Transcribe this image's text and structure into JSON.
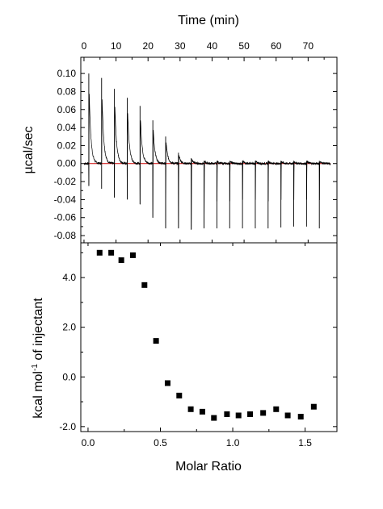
{
  "chart_data": [
    {
      "type": "line",
      "panel": "top",
      "x_axis_title": "Time (min)",
      "y_axis_title": "µcal/sec",
      "x_axis_position": "top",
      "xlim": [
        -1,
        79
      ],
      "ylim": [
        -0.088,
        0.118
      ],
      "x_ticks": [
        "0",
        "10",
        "20",
        "30",
        "40",
        "50",
        "60",
        "70"
      ],
      "x_tick_values": [
        0,
        10,
        20,
        30,
        40,
        50,
        60,
        70
      ],
      "y_ticks": [
        "0.10",
        "0.08",
        "0.06",
        "0.04",
        "0.02",
        "0.00",
        "-0.02",
        "-0.04",
        "-0.06",
        "-0.08"
      ],
      "y_tick_values": [
        0.1,
        0.08,
        0.06,
        0.04,
        0.02,
        0.0,
        -0.02,
        -0.04,
        -0.06,
        -0.08
      ],
      "injection_times": [
        1.5,
        5.5,
        9.5,
        13.5,
        17.5,
        21.5,
        25.5,
        29.5,
        33.5,
        37.5,
        41.5,
        45.5,
        49.5,
        53.5,
        57.5,
        61.5,
        65.5,
        69.5,
        73.5
      ],
      "peak_max": [
        0.1,
        0.095,
        0.083,
        0.073,
        0.064,
        0.048,
        0.03,
        0.012,
        0.006,
        0.003,
        0.003,
        0.003,
        0.003,
        0.003,
        0.003,
        0.003,
        0.003,
        0.003,
        0.003
      ],
      "peak_min": [
        -0.025,
        -0.028,
        -0.038,
        -0.04,
        -0.045,
        -0.06,
        -0.072,
        -0.072,
        -0.073,
        -0.072,
        -0.072,
        -0.072,
        -0.072,
        -0.072,
        -0.072,
        -0.071,
        -0.07,
        -0.07,
        -0.072
      ],
      "baseline": 0.0,
      "baseline_color": "#cc0000",
      "trace_color": "#000000"
    },
    {
      "type": "scatter",
      "panel": "bottom",
      "x_axis_title": "Molar Ratio",
      "y_axis_title": "kcal mol-1 of injectant",
      "xlim": [
        -0.05,
        1.72
      ],
      "ylim": [
        -2.2,
        5.4
      ],
      "x_ticks": [
        "0.0",
        "0.5",
        "1.0",
        "1.5"
      ],
      "x_tick_values": [
        0.0,
        0.5,
        1.0,
        1.5
      ],
      "y_ticks": [
        "4.0",
        "2.0",
        "0.0",
        "-2.0"
      ],
      "y_tick_values": [
        4.0,
        2.0,
        0.0,
        -2.0
      ],
      "marker": "square",
      "marker_color": "#000000",
      "points": [
        {
          "x": 0.08,
          "y": 5.0
        },
        {
          "x": 0.16,
          "y": 5.0
        },
        {
          "x": 0.23,
          "y": 4.7
        },
        {
          "x": 0.31,
          "y": 4.9
        },
        {
          "x": 0.39,
          "y": 3.7
        },
        {
          "x": 0.47,
          "y": 1.45
        },
        {
          "x": 0.55,
          "y": -0.25
        },
        {
          "x": 0.63,
          "y": -0.75
        },
        {
          "x": 0.71,
          "y": -1.3
        },
        {
          "x": 0.79,
          "y": -1.4
        },
        {
          "x": 0.87,
          "y": -1.65
        },
        {
          "x": 0.96,
          "y": -1.5
        },
        {
          "x": 1.04,
          "y": -1.55
        },
        {
          "x": 1.12,
          "y": -1.5
        },
        {
          "x": 1.21,
          "y": -1.45
        },
        {
          "x": 1.3,
          "y": -1.3
        },
        {
          "x": 1.38,
          "y": -1.55
        },
        {
          "x": 1.47,
          "y": -1.6
        },
        {
          "x": 1.56,
          "y": -1.2
        }
      ]
    }
  ],
  "labels": {
    "time_axis": "Time (min)",
    "power_axis": "µcal/sec",
    "ratio_axis": "Molar Ratio",
    "heat_axis_pre": "kcal mol",
    "heat_axis_sup": "-1",
    "heat_axis_post": " of injectant"
  }
}
